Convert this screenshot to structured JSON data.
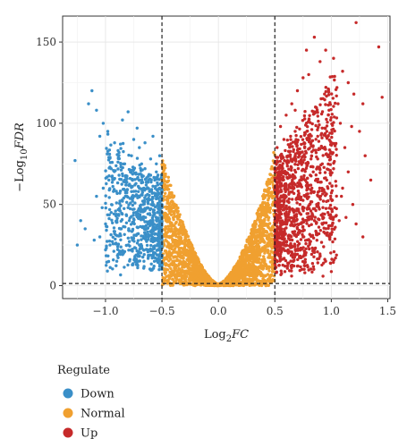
{
  "chart_data": {
    "type": "scatter",
    "title": "",
    "xlabel": "Log2FC",
    "ylabel": "-Log10FDR",
    "xlim": [
      -1.38,
      1.52
    ],
    "ylim": [
      -8,
      166
    ],
    "x_ticks": [
      {
        "value": -1.0,
        "label": "−1.0"
      },
      {
        "value": -0.5,
        "label": "−0.5"
      },
      {
        "value": 0.0,
        "label": "0.0"
      },
      {
        "value": 0.5,
        "label": "0.5"
      },
      {
        "value": 1.0,
        "label": "1.0"
      },
      {
        "value": 1.5,
        "label": "1.5"
      }
    ],
    "y_ticks": [
      {
        "value": 0,
        "label": "0"
      },
      {
        "value": 50,
        "label": "50"
      },
      {
        "value": 100,
        "label": "100"
      },
      {
        "value": 150,
        "label": "150"
      }
    ],
    "fc_threshold": 0.5,
    "fdr_threshold": 1.3,
    "grid": true,
    "legend": {
      "title": "Regulate",
      "placement": "bottom-left",
      "entries": [
        {
          "label": "Down",
          "color": "#3a8fc8"
        },
        {
          "label": "Normal",
          "color": "#f0a030"
        },
        {
          "label": "Up",
          "color": "#c62a2a"
        }
      ]
    },
    "series": [
      {
        "name": "Down",
        "color": "#3a8fc8",
        "points": [
          [
            -1.12,
            120
          ],
          [
            -1.15,
            112
          ],
          [
            -1.08,
            108
          ],
          [
            -1.02,
            100
          ],
          [
            -1.05,
            92
          ],
          [
            -0.98,
            95
          ],
          [
            -0.92,
            88
          ],
          [
            -0.85,
            102
          ],
          [
            -0.8,
            107
          ],
          [
            -0.88,
            82
          ],
          [
            -0.75,
            90
          ],
          [
            -0.72,
            97
          ],
          [
            -0.7,
            85
          ],
          [
            -0.68,
            75
          ],
          [
            -0.65,
            88
          ],
          [
            -0.6,
            78
          ],
          [
            -0.58,
            92
          ],
          [
            -0.55,
            70
          ],
          [
            -0.62,
            65
          ],
          [
            -0.66,
            60
          ],
          [
            -0.7,
            55
          ],
          [
            -0.75,
            58
          ],
          [
            -0.8,
            48
          ],
          [
            -0.85,
            52
          ],
          [
            -0.9,
            40
          ],
          [
            -0.95,
            45
          ],
          [
            -1.0,
            38
          ],
          [
            -1.05,
            30
          ],
          [
            -1.1,
            28
          ],
          [
            -1.18,
            35
          ],
          [
            -1.22,
            40
          ],
          [
            -1.25,
            25
          ],
          [
            -1.27,
            77
          ],
          [
            -0.52,
            60
          ],
          [
            -0.54,
            45
          ],
          [
            -0.56,
            35
          ],
          [
            -0.58,
            50
          ],
          [
            -0.6,
            40
          ],
          [
            -0.64,
            30
          ],
          [
            -0.68,
            42
          ],
          [
            -0.72,
            36
          ],
          [
            -0.76,
            28
          ],
          [
            -0.78,
            70
          ],
          [
            -0.82,
            62
          ],
          [
            -0.86,
            35
          ],
          [
            -0.92,
            32
          ],
          [
            -0.96,
            25
          ],
          [
            -0.7,
            25
          ],
          [
            -0.62,
            22
          ],
          [
            -0.56,
            20
          ],
          [
            -0.53,
            15
          ],
          [
            -0.57,
            12
          ],
          [
            -0.6,
            10
          ],
          [
            -0.66,
            15
          ],
          [
            -0.74,
            18
          ],
          [
            -0.84,
            20
          ],
          [
            -0.9,
            15
          ],
          [
            -1.0,
            22
          ],
          [
            -0.52,
            80
          ],
          [
            -0.55,
            75
          ],
          [
            -0.6,
            68
          ],
          [
            -0.65,
            72
          ],
          [
            -0.7,
            65
          ],
          [
            -0.77,
            80
          ],
          [
            -0.83,
            75
          ],
          [
            -0.88,
            68
          ],
          [
            -0.95,
            72
          ],
          [
            -1.02,
            60
          ],
          [
            -1.08,
            55
          ],
          [
            -0.53,
            30
          ],
          [
            -0.58,
            27
          ],
          [
            -0.63,
            48
          ],
          [
            -0.67,
            52
          ],
          [
            -0.73,
            45
          ],
          [
            -0.79,
            40
          ],
          [
            -0.81,
            55
          ],
          [
            -0.87,
            46
          ],
          [
            -0.93,
            58
          ],
          [
            -0.97,
            65
          ],
          [
            -1.03,
            48
          ],
          [
            -0.52,
            52
          ],
          [
            -0.54,
            67
          ],
          [
            -0.57,
            57
          ],
          [
            -0.59,
            38
          ],
          [
            -0.61,
            58
          ],
          [
            -0.64,
            62
          ],
          [
            -0.69,
            48
          ],
          [
            -0.71,
            32
          ],
          [
            -0.74,
            62
          ],
          [
            -0.76,
            52
          ]
        ]
      },
      {
        "name": "Normal",
        "color": "#f0a030",
        "points": [
          [
            -0.5,
            65
          ],
          [
            -0.48,
            55
          ],
          [
            -0.46,
            48
          ],
          [
            -0.44,
            42
          ],
          [
            -0.42,
            38
          ],
          [
            -0.4,
            32
          ],
          [
            -0.38,
            28
          ],
          [
            -0.36,
            24
          ],
          [
            -0.34,
            20
          ],
          [
            -0.32,
            17
          ],
          [
            -0.3,
            14
          ],
          [
            -0.28,
            12
          ],
          [
            -0.26,
            10
          ],
          [
            -0.24,
            8
          ],
          [
            -0.22,
            6
          ],
          [
            -0.2,
            5
          ],
          [
            -0.18,
            4
          ],
          [
            -0.16,
            3
          ],
          [
            -0.14,
            2
          ],
          [
            -0.12,
            1.5
          ],
          [
            -0.1,
            1
          ],
          [
            -0.08,
            0.8
          ],
          [
            -0.06,
            0.5
          ],
          [
            -0.04,
            0.3
          ],
          [
            -0.02,
            0.2
          ],
          [
            0.0,
            0.1
          ],
          [
            0.02,
            0.2
          ],
          [
            0.04,
            0.3
          ],
          [
            0.06,
            0.5
          ],
          [
            0.08,
            0.8
          ],
          [
            0.1,
            1
          ],
          [
            0.12,
            1.5
          ],
          [
            0.14,
            2
          ],
          [
            0.16,
            3
          ],
          [
            0.18,
            4
          ],
          [
            0.2,
            5
          ],
          [
            0.22,
            6
          ],
          [
            0.24,
            8
          ],
          [
            0.26,
            10
          ],
          [
            0.28,
            12
          ],
          [
            0.3,
            14
          ],
          [
            0.32,
            17
          ],
          [
            0.34,
            20
          ],
          [
            0.36,
            24
          ],
          [
            0.38,
            28
          ],
          [
            0.4,
            32
          ],
          [
            0.42,
            38
          ],
          [
            0.44,
            42
          ],
          [
            0.46,
            48
          ],
          [
            0.48,
            55
          ],
          [
            0.5,
            68
          ],
          [
            0.49,
            82
          ],
          [
            -0.49,
            75
          ],
          [
            -0.47,
            35
          ],
          [
            -0.45,
            30
          ],
          [
            -0.43,
            25
          ],
          [
            -0.41,
            20
          ],
          [
            -0.39,
            15
          ],
          [
            -0.37,
            12
          ],
          [
            -0.35,
            10
          ],
          [
            0.35,
            10
          ],
          [
            0.37,
            12
          ],
          [
            0.39,
            15
          ],
          [
            0.41,
            20
          ],
          [
            0.43,
            25
          ],
          [
            0.45,
            30
          ],
          [
            0.47,
            35
          ],
          [
            -0.3,
            6
          ],
          [
            -0.25,
            4
          ],
          [
            0.25,
            4
          ],
          [
            0.3,
            6
          ]
        ]
      },
      {
        "name": "Up",
        "color": "#c62a2a",
        "points": [
          [
            0.85,
            153
          ],
          [
            1.22,
            162
          ],
          [
            1.45,
            116
          ],
          [
            0.95,
            145
          ],
          [
            1.02,
            140
          ],
          [
            0.9,
            138
          ],
          [
            0.8,
            130
          ],
          [
            1.1,
            132
          ],
          [
            1.15,
            125
          ],
          [
            0.75,
            128
          ],
          [
            0.7,
            120
          ],
          [
            1.05,
            122
          ],
          [
            1.2,
            118
          ],
          [
            1.28,
            112
          ],
          [
            0.65,
            112
          ],
          [
            0.6,
            105
          ],
          [
            0.98,
            108
          ],
          [
            1.08,
            100
          ],
          [
            1.18,
            98
          ],
          [
            1.25,
            95
          ],
          [
            0.55,
            98
          ],
          [
            0.58,
            90
          ],
          [
            0.68,
            95
          ],
          [
            0.78,
            100
          ],
          [
            0.88,
            92
          ],
          [
            1.0,
            88
          ],
          [
            1.12,
            85
          ],
          [
            1.3,
            80
          ],
          [
            0.52,
            85
          ],
          [
            0.62,
            80
          ],
          [
            0.72,
            82
          ],
          [
            0.82,
            78
          ],
          [
            0.92,
            75
          ],
          [
            1.02,
            72
          ],
          [
            1.15,
            70
          ],
          [
            1.35,
            65
          ],
          [
            0.53,
            72
          ],
          [
            0.57,
            65
          ],
          [
            0.63,
            68
          ],
          [
            0.67,
            60
          ],
          [
            0.73,
            62
          ],
          [
            0.77,
            55
          ],
          [
            0.83,
            58
          ],
          [
            0.87,
            50
          ],
          [
            0.93,
            52
          ],
          [
            0.97,
            45
          ],
          [
            1.03,
            48
          ],
          [
            1.07,
            40
          ],
          [
            1.13,
            42
          ],
          [
            1.22,
            38
          ],
          [
            1.28,
            30
          ],
          [
            0.52,
            55
          ],
          [
            0.55,
            48
          ],
          [
            0.6,
            42
          ],
          [
            0.65,
            38
          ],
          [
            0.7,
            35
          ],
          [
            0.75,
            30
          ],
          [
            0.8,
            28
          ],
          [
            0.85,
            22
          ],
          [
            0.9,
            18
          ],
          [
            0.95,
            15
          ],
          [
            0.52,
            40
          ],
          [
            0.56,
            32
          ],
          [
            0.58,
            25
          ],
          [
            0.62,
            20
          ],
          [
            0.66,
            15
          ],
          [
            0.7,
            12
          ],
          [
            0.74,
            10
          ],
          [
            0.54,
            18
          ],
          [
            0.59,
            12
          ],
          [
            1.42,
            147
          ],
          [
            0.78,
            145
          ],
          [
            0.68,
            108
          ],
          [
            0.64,
            92
          ],
          [
            0.86,
            110
          ],
          [
            0.94,
            118
          ],
          [
            1.06,
            112
          ],
          [
            0.76,
            88
          ],
          [
            0.84,
            70
          ],
          [
            0.96,
            65
          ],
          [
            1.1,
            60
          ],
          [
            0.52,
            28
          ],
          [
            0.55,
            62
          ],
          [
            0.61,
            52
          ],
          [
            0.69,
            46
          ],
          [
            0.79,
            42
          ],
          [
            0.89,
            36
          ],
          [
            0.99,
            32
          ],
          [
            1.09,
            55
          ],
          [
            1.19,
            50
          ]
        ]
      }
    ]
  }
}
